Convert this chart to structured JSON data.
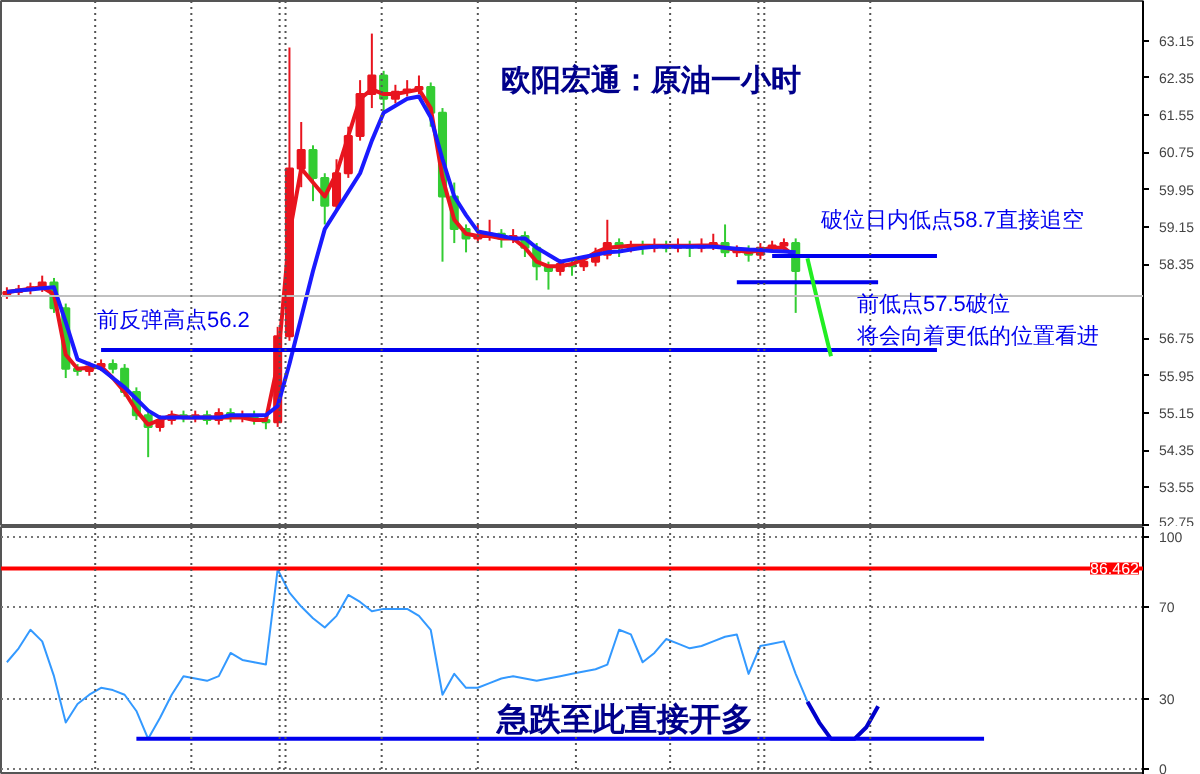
{
  "chart_data": [
    {
      "type": "candlestick",
      "title": "欧阳宏通：原油一小时",
      "categories": [
        null,
        null,
        null,
        null,
        null,
        null,
        null,
        null,
        null,
        null,
        null,
        null,
        null,
        null,
        null,
        null,
        null,
        null,
        null,
        null,
        null,
        null,
        null,
        null,
        null,
        null,
        null,
        null,
        null,
        null,
        null,
        null,
        null,
        null,
        null,
        null,
        null,
        null,
        null,
        null,
        null,
        null,
        null,
        null,
        null,
        null,
        null,
        null,
        null,
        null,
        null,
        null,
        null,
        null,
        null,
        null,
        null,
        null,
        null,
        null,
        null,
        null,
        null,
        null,
        null,
        null,
        null,
        null,
        null,
        null,
        null,
        null,
        null,
        null,
        null,
        null,
        null,
        null,
        null,
        null,
        null,
        null,
        null,
        null
      ],
      "ohlc": [
        [
          57.7,
          57.85,
          57.6,
          57.75
        ],
        [
          57.75,
          57.9,
          57.65,
          57.8
        ],
        [
          57.8,
          57.95,
          57.7,
          57.85
        ],
        [
          57.85,
          58.1,
          57.75,
          57.95
        ],
        [
          57.95,
          58.05,
          57.3,
          57.4
        ],
        [
          57.4,
          57.5,
          55.9,
          56.1
        ],
        [
          56.1,
          56.2,
          55.95,
          56.05
        ],
        [
          56.05,
          56.25,
          55.95,
          56.15
        ],
        [
          56.15,
          56.3,
          56.05,
          56.2
        ],
        [
          56.2,
          56.3,
          56.0,
          56.1
        ],
        [
          56.1,
          56.2,
          55.5,
          55.6
        ],
        [
          55.6,
          55.7,
          55.0,
          55.1
        ],
        [
          55.1,
          55.2,
          54.2,
          54.85
        ],
        [
          54.85,
          55.1,
          54.75,
          55.0
        ],
        [
          55.0,
          55.2,
          54.9,
          55.1
        ],
        [
          55.1,
          55.2,
          54.95,
          55.05
        ],
        [
          55.05,
          55.2,
          54.95,
          55.1
        ],
        [
          55.1,
          55.2,
          54.9,
          55.0
        ],
        [
          55.0,
          55.25,
          54.9,
          55.15
        ],
        [
          55.15,
          55.25,
          54.95,
          55.05
        ],
        [
          55.05,
          55.2,
          54.95,
          55.1
        ],
        [
          55.1,
          55.2,
          54.9,
          55.0
        ],
        [
          55.0,
          55.1,
          54.8,
          54.95
        ],
        [
          54.95,
          57.0,
          54.85,
          56.8
        ],
        [
          56.8,
          63.0,
          56.7,
          60.4
        ],
        [
          60.4,
          61.4,
          60.0,
          60.8
        ],
        [
          60.8,
          60.9,
          59.7,
          60.2
        ],
        [
          60.2,
          60.3,
          59.2,
          59.6
        ],
        [
          59.6,
          60.6,
          59.5,
          60.3
        ],
        [
          60.3,
          61.3,
          60.2,
          61.1
        ],
        [
          61.1,
          62.3,
          61.0,
          62.0
        ],
        [
          62.0,
          63.3,
          61.7,
          62.4
        ],
        [
          62.4,
          62.5,
          61.6,
          61.9
        ],
        [
          61.9,
          62.2,
          61.8,
          62.05
        ],
        [
          62.05,
          62.3,
          61.95,
          62.1
        ],
        [
          62.1,
          62.4,
          62.0,
          62.15
        ],
        [
          62.15,
          62.25,
          61.3,
          61.6
        ],
        [
          61.6,
          61.7,
          58.4,
          59.8
        ],
        [
          59.8,
          60.1,
          58.8,
          59.1
        ],
        [
          59.1,
          59.2,
          58.6,
          58.9
        ],
        [
          58.9,
          59.2,
          58.8,
          58.95
        ],
        [
          58.95,
          59.3,
          58.85,
          59.0
        ],
        [
          59.0,
          59.1,
          58.7,
          58.9
        ],
        [
          58.9,
          59.1,
          58.8,
          58.95
        ],
        [
          58.95,
          59.05,
          58.5,
          58.7
        ],
        [
          58.7,
          58.8,
          58.0,
          58.3
        ],
        [
          58.3,
          58.4,
          57.8,
          58.2
        ],
        [
          58.2,
          58.45,
          58.1,
          58.35
        ],
        [
          58.35,
          58.45,
          58.1,
          58.3
        ],
        [
          58.3,
          58.5,
          58.2,
          58.4
        ],
        [
          58.4,
          58.7,
          58.3,
          58.55
        ],
        [
          58.55,
          59.3,
          58.45,
          58.8
        ],
        [
          58.8,
          58.9,
          58.5,
          58.7
        ],
        [
          58.7,
          58.85,
          58.6,
          58.75
        ],
        [
          58.75,
          58.85,
          58.55,
          58.7
        ],
        [
          58.7,
          58.9,
          58.6,
          58.75
        ],
        [
          58.75,
          58.85,
          58.6,
          58.7
        ],
        [
          58.7,
          58.9,
          58.6,
          58.75
        ],
        [
          58.75,
          58.85,
          58.5,
          58.7
        ],
        [
          58.7,
          58.9,
          58.6,
          58.75
        ],
        [
          58.75,
          59.0,
          58.65,
          58.8
        ],
        [
          58.8,
          59.2,
          58.5,
          58.6
        ],
        [
          58.6,
          58.75,
          58.5,
          58.65
        ],
        [
          58.65,
          58.75,
          58.4,
          58.55
        ],
        [
          58.55,
          58.8,
          58.45,
          58.7
        ],
        [
          58.7,
          58.85,
          58.6,
          58.75
        ],
        [
          58.75,
          58.9,
          58.65,
          58.8
        ],
        [
          58.8,
          58.9,
          57.3,
          58.2
        ],
        null,
        null,
        null,
        null,
        null,
        null,
        null,
        null,
        null,
        null,
        null,
        null,
        null,
        null,
        null,
        null
      ],
      "colors": [
        "#e8141e",
        "#e8141e",
        "#e8141e",
        "#e8141e",
        "#33cc33",
        "#33cc33",
        "#33cc33",
        "#e8141e",
        "#e8141e",
        "#33cc33",
        "#33cc33",
        "#33cc33",
        "#33cc33",
        "#e8141e",
        "#e8141e",
        "#33cc33",
        "#e8141e",
        "#33cc33",
        "#e8141e",
        "#33cc33",
        "#e8141e",
        "#33cc33",
        "#33cc33",
        "#e8141e",
        "#e8141e",
        "#e8141e",
        "#33cc33",
        "#33cc33",
        "#e8141e",
        "#e8141e",
        "#e8141e",
        "#e8141e",
        "#33cc33",
        "#e8141e",
        "#e8141e",
        "#e8141e",
        "#33cc33",
        "#33cc33",
        "#33cc33",
        "#33cc33",
        "#e8141e",
        "#e8141e",
        "#33cc33",
        "#e8141e",
        "#33cc33",
        "#33cc33",
        "#33cc33",
        "#e8141e",
        "#33cc33",
        "#e8141e",
        "#e8141e",
        "#e8141e",
        "#33cc33",
        "#e8141e",
        "#33cc33",
        "#e8141e",
        "#33cc33",
        "#e8141e",
        "#33cc33",
        "#e8141e",
        "#e8141e",
        "#33cc33",
        "#e8141e",
        "#33cc33",
        "#e8141e",
        "#e8141e",
        "#e8141e",
        "#33cc33",
        null,
        null,
        null,
        null,
        null,
        null,
        null,
        null,
        null,
        null,
        null,
        null,
        null,
        null,
        null,
        null
      ],
      "series": [
        {
          "type": "line",
          "color": "#e8141e",
          "values": [
            57.75,
            57.78,
            57.82,
            57.85,
            57.7,
            56.4,
            56.1,
            56.12,
            56.15,
            55.9,
            55.6,
            55.2,
            54.9,
            55.0,
            55.1,
            55.05,
            55.05,
            55.05,
            55.05,
            55.05,
            55.05,
            55.0,
            55.0,
            56.2,
            59.0,
            60.4,
            60.1,
            59.8,
            60.3,
            61.1,
            61.9,
            62.1,
            62.0,
            62.0,
            62.05,
            62.1,
            61.7,
            60.2,
            59.3,
            59.0,
            58.95,
            58.95,
            58.9,
            58.9,
            58.7,
            58.4,
            58.3,
            58.3,
            58.35,
            58.45,
            58.6,
            58.7,
            58.72,
            58.74,
            58.74,
            58.74,
            58.74,
            58.74,
            58.74,
            58.75,
            58.75,
            58.7,
            58.65,
            58.6,
            58.65,
            58.7,
            58.7,
            58.5,
            null,
            null,
            null,
            null,
            null,
            null,
            null,
            null,
            null,
            null,
            null,
            null,
            null,
            null,
            null,
            null
          ]
        },
        {
          "type": "line",
          "color": "#1a1aff",
          "values": [
            57.75,
            57.78,
            57.8,
            57.83,
            57.85,
            57.1,
            56.3,
            56.2,
            56.1,
            55.9,
            55.7,
            55.45,
            55.2,
            55.05,
            55.05,
            55.05,
            55.05,
            55.05,
            55.05,
            55.1,
            55.1,
            55.1,
            55.1,
            55.3,
            56.2,
            57.2,
            58.2,
            59.1,
            59.5,
            59.9,
            60.3,
            61.0,
            61.6,
            61.75,
            61.9,
            61.95,
            61.5,
            60.6,
            59.8,
            59.4,
            59.05,
            59.0,
            58.95,
            58.9,
            58.9,
            58.7,
            58.55,
            58.4,
            58.45,
            58.5,
            58.55,
            58.6,
            58.62,
            58.66,
            58.7,
            58.72,
            58.72,
            58.72,
            58.72,
            58.72,
            58.72,
            58.7,
            58.68,
            58.66,
            58.65,
            58.63,
            58.62,
            58.6,
            null,
            null,
            null,
            null,
            null,
            null,
            null,
            null,
            null,
            null,
            null,
            null,
            null,
            null,
            null,
            null
          ]
        },
        {
          "type": "line",
          "color": "#0000ee",
          "values": [
            null,
            null,
            null,
            null,
            null,
            null,
            null,
            null,
            56.5,
            56.5,
            56.5,
            56.5,
            56.5,
            56.5,
            56.5,
            56.5,
            56.5,
            56.5,
            56.5,
            56.5,
            56.5,
            56.5,
            56.5,
            56.5,
            56.5,
            56.5,
            56.5,
            56.5,
            56.5,
            56.5,
            56.5,
            56.5,
            56.5,
            56.5,
            56.5,
            56.5,
            56.5,
            56.5,
            56.5,
            56.5,
            56.5,
            56.5,
            56.5,
            56.5,
            56.5,
            56.5,
            56.5,
            56.5,
            56.5,
            56.5,
            56.5,
            56.5,
            56.5,
            56.5,
            56.5,
            56.5,
            56.5,
            56.5,
            56.5,
            56.5,
            56.5,
            56.5,
            56.5,
            56.5,
            56.5,
            56.5,
            56.5,
            56.5,
            56.5,
            56.5,
            56.5,
            56.5,
            56.5,
            56.5,
            56.5,
            56.5,
            56.5,
            56.5,
            56.5,
            56.5,
            null,
            null,
            null,
            null
          ]
        },
        {
          "type": "line",
          "color": "#0000ee",
          "values": [
            null,
            null,
            null,
            null,
            null,
            null,
            null,
            null,
            null,
            null,
            null,
            null,
            null,
            null,
            null,
            null,
            null,
            null,
            null,
            null,
            null,
            null,
            null,
            null,
            null,
            null,
            null,
            null,
            null,
            null,
            null,
            null,
            null,
            null,
            null,
            null,
            null,
            null,
            null,
            null,
            null,
            null,
            null,
            null,
            null,
            null,
            null,
            null,
            null,
            null,
            null,
            null,
            null,
            null,
            null,
            null,
            null,
            null,
            null,
            null,
            null,
            null,
            null,
            null,
            null,
            58.52,
            58.52,
            58.52,
            58.52,
            58.52,
            58.52,
            58.52,
            58.52,
            58.52,
            58.52,
            58.52,
            58.52,
            58.52,
            58.52,
            58.52,
            null,
            null,
            null,
            null
          ]
        },
        {
          "type": "line",
          "color": "#0000ee",
          "values": [
            null,
            null,
            null,
            null,
            null,
            null,
            null,
            null,
            null,
            null,
            null,
            null,
            null,
            null,
            null,
            null,
            null,
            null,
            null,
            null,
            null,
            null,
            null,
            null,
            null,
            null,
            null,
            null,
            null,
            null,
            null,
            null,
            null,
            null,
            null,
            null,
            null,
            null,
            null,
            null,
            null,
            null,
            null,
            null,
            null,
            null,
            null,
            null,
            null,
            null,
            null,
            null,
            null,
            null,
            null,
            null,
            null,
            null,
            null,
            null,
            null,
            null,
            57.96,
            57.96,
            57.96,
            57.96,
            57.96,
            57.96,
            57.96,
            57.96,
            57.96,
            57.96,
            57.96,
            57.96,
            57.96,
            null,
            null,
            null,
            null,
            null,
            null,
            null,
            null,
            null
          ]
        },
        {
          "type": "line",
          "color": "#22ee22",
          "values": [
            null,
            null,
            null,
            null,
            null,
            null,
            null,
            null,
            null,
            null,
            null,
            null,
            null,
            null,
            null,
            null,
            null,
            null,
            null,
            null,
            null,
            null,
            null,
            null,
            null,
            null,
            null,
            null,
            null,
            null,
            null,
            null,
            null,
            null,
            null,
            null,
            null,
            null,
            null,
            null,
            null,
            null,
            null,
            null,
            null,
            null,
            null,
            null,
            null,
            null,
            null,
            null,
            null,
            null,
            null,
            null,
            null,
            null,
            null,
            null,
            null,
            null,
            null,
            null,
            null,
            null,
            null,
            null,
            58.47,
            57.4,
            56.37,
            null,
            null,
            null,
            null,
            null,
            null,
            null,
            null,
            null,
            null,
            null,
            null,
            null
          ]
        }
      ],
      "ref_lines": [
        {
          "axis": "y",
          "value": 57.66,
          "color": "#c0c0c0"
        }
      ],
      "annotations": [
        "前反弹高点56.2",
        "破位日内低点58.7直接追空",
        "前低点57.5破位",
        "将会向着更低的位置看进"
      ],
      "ylim": [
        52.7,
        64.0
      ],
      "yticks": [
        63.15,
        62.35,
        61.55,
        60.75,
        59.95,
        59.15,
        58.35,
        56.75,
        55.95,
        55.15,
        54.35,
        53.55,
        52.75
      ],
      "tick_labels": "y"
    },
    {
      "type": "line",
      "categories": [
        null,
        null,
        null,
        null,
        null,
        null,
        null,
        null,
        null,
        null,
        null,
        null,
        null,
        null,
        null,
        null,
        null,
        null,
        null,
        null,
        null,
        null,
        null,
        null,
        null,
        null,
        null,
        null,
        null,
        null,
        null,
        null,
        null,
        null,
        null,
        null,
        null,
        null,
        null,
        null,
        null,
        null,
        null,
        null,
        null,
        null,
        null,
        null,
        null,
        null,
        null,
        null,
        null,
        null,
        null,
        null,
        null,
        null,
        null,
        null,
        null,
        null,
        null,
        null,
        null,
        null,
        null,
        null,
        null,
        null,
        null,
        null,
        null,
        null,
        null,
        null,
        null,
        null,
        null,
        null,
        null,
        null,
        null,
        null
      ],
      "series": [
        {
          "color": "#3399ff",
          "values": [
            46,
            52,
            60,
            55,
            40,
            20,
            28,
            32,
            35,
            34,
            32,
            25,
            13,
            22,
            32,
            40,
            39,
            38,
            40,
            50,
            47,
            46,
            45,
            86,
            76,
            70,
            65,
            61,
            66,
            75,
            72,
            68,
            69,
            69,
            69,
            66,
            60,
            32,
            41,
            35,
            35,
            37,
            39,
            40,
            39,
            38,
            39,
            40,
            41,
            42,
            43,
            45,
            60,
            58,
            46,
            50,
            56,
            54,
            52,
            53,
            55,
            57,
            58,
            41,
            53,
            54,
            55,
            41,
            29,
            null,
            null,
            null,
            null,
            null,
            null,
            null,
            null,
            null,
            null,
            null,
            null,
            null,
            null,
            null
          ]
        },
        {
          "color": "#0000cc",
          "values": [
            null,
            null,
            null,
            null,
            null,
            null,
            null,
            null,
            null,
            null,
            null,
            null,
            null,
            null,
            null,
            null,
            null,
            null,
            null,
            null,
            null,
            null,
            null,
            null,
            null,
            null,
            null,
            null,
            null,
            null,
            null,
            null,
            null,
            null,
            null,
            null,
            null,
            null,
            null,
            null,
            null,
            null,
            null,
            null,
            null,
            null,
            null,
            null,
            null,
            null,
            null,
            null,
            null,
            null,
            null,
            null,
            null,
            null,
            null,
            null,
            null,
            null,
            null,
            null,
            null,
            null,
            null,
            null,
            29,
            20,
            13,
            13,
            13,
            18,
            27,
            null,
            null,
            null,
            null,
            null,
            null,
            null,
            null,
            null
          ]
        },
        {
          "color": "#0000ee",
          "values": [
            null,
            null,
            null,
            null,
            null,
            null,
            null,
            null,
            null,
            null,
            null,
            13,
            13,
            13,
            13,
            13,
            13,
            13,
            13,
            13,
            13,
            13,
            13,
            13,
            13,
            13,
            13,
            13,
            13,
            13,
            13,
            13,
            13,
            13,
            13,
            13,
            13,
            13,
            13,
            13,
            13,
            13,
            13,
            13,
            13,
            13,
            13,
            13,
            13,
            13,
            13,
            13,
            13,
            13,
            13,
            13,
            13,
            13,
            13,
            13,
            13,
            13,
            13,
            13,
            13,
            13,
            13,
            13,
            13,
            13,
            13,
            13,
            13,
            13,
            13,
            13,
            13,
            13,
            13,
            13,
            13,
            13,
            13,
            13
          ]
        }
      ],
      "ref_lines": [
        {
          "axis": "y",
          "value": 86.462,
          "label": "86.462",
          "color": "#ff0000"
        }
      ],
      "annotations": [
        "急跌至此直接开多"
      ],
      "ylim": [
        -2.6,
        104.3
      ],
      "yticks": [
        100,
        70,
        30,
        0
      ],
      "grid": "y",
      "tick_labels": "y"
    }
  ]
}
